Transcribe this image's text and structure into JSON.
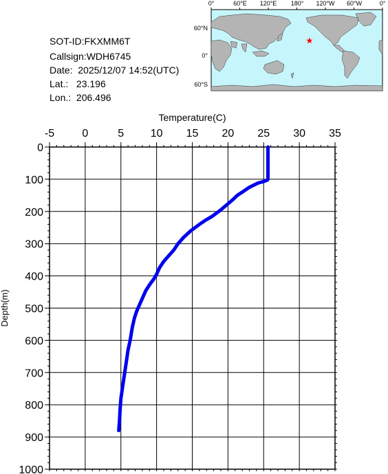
{
  "station": {
    "sot_id": "SOT-ID:FKXMM6T",
    "callsign": "Callsign:WDH6745",
    "date": "Date:  2025/12/07 14:52(UTC)",
    "lat": "Lat.:   23.196",
    "lon": "Lon.:  206.496"
  },
  "map": {
    "lon_labels": [
      "0°",
      "60°E",
      "120°E",
      "180°",
      "120°W",
      "60°W",
      "0°"
    ],
    "lat_labels": [
      "60°N",
      "0°",
      "60°S"
    ],
    "marker": {
      "lon": 206.496,
      "lat": 23.196
    },
    "colors": {
      "ocean": "#c6f6fb",
      "land": "#b4b4b4",
      "marker": "#ff0000"
    }
  },
  "chart_data": {
    "type": "line",
    "title": "",
    "xlabel": "Temperature(C)",
    "ylabel": "Depth(m)",
    "xlim": [
      -5,
      35
    ],
    "ylim": [
      0,
      1000
    ],
    "y_inverted": true,
    "x_axis_position": "top",
    "grid": true,
    "xticks": [
      -5,
      0,
      5,
      10,
      15,
      20,
      25,
      30,
      35
    ],
    "yticks": [
      0,
      100,
      200,
      300,
      400,
      500,
      600,
      700,
      800,
      900,
      1000
    ],
    "series": [
      {
        "color": "#0000ee",
        "x": [
          25.6,
          25.6,
          25.6,
          25.5,
          25.0,
          24.2,
          23.0,
          22.0,
          21.3,
          20.6,
          19.8,
          19.0,
          18.4,
          17.8,
          16.8,
          16.0,
          14.8,
          13.8,
          13.0,
          12.4,
          11.8,
          11.0,
          10.4,
          10.0,
          9.6,
          9.1,
          8.5,
          8.0,
          7.6,
          7.2,
          6.9,
          6.6,
          6.3,
          6.0,
          5.8,
          5.6,
          5.4,
          5.2,
          5.0,
          4.9,
          4.8,
          4.7
        ],
        "y": [
          0,
          50,
          100,
          103,
          107,
          112,
          125,
          140,
          150,
          165,
          180,
          195,
          205,
          215,
          228,
          240,
          260,
          280,
          300,
          320,
          335,
          355,
          375,
          395,
          410,
          425,
          445,
          470,
          490,
          510,
          530,
          560,
          600,
          630,
          660,
          690,
          720,
          750,
          780,
          810,
          850,
          880
        ]
      }
    ]
  }
}
